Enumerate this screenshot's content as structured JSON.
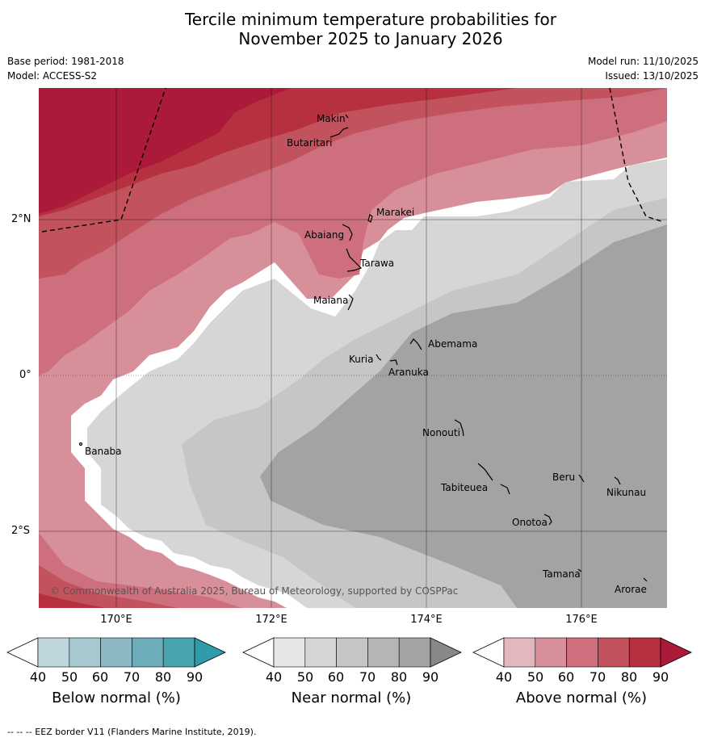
{
  "title": {
    "line1": "Tercile minimum temperature probabilities for",
    "line2": "November 2025 to January 2026"
  },
  "meta": {
    "base_period": "Base period: 1981-2018",
    "model": "Model: ACCESS-S2",
    "model_run": "Model run: 11/10/2025",
    "issued": "Issued: 13/10/2025"
  },
  "map": {
    "lat_labels": [
      "2°N",
      "0°",
      "2°S"
    ],
    "lon_labels": [
      "170°E",
      "172°E",
      "174°E",
      "176°E"
    ],
    "places": [
      {
        "name": "Makin"
      },
      {
        "name": "Butaritari"
      },
      {
        "name": "Marakei"
      },
      {
        "name": "Abaiang"
      },
      {
        "name": "Tarawa"
      },
      {
        "name": "Maiana"
      },
      {
        "name": "Abemama"
      },
      {
        "name": "Kuria"
      },
      {
        "name": "Aranuka"
      },
      {
        "name": "Banaba"
      },
      {
        "name": "Nonouti"
      },
      {
        "name": "Beru"
      },
      {
        "name": "Nikunau"
      },
      {
        "name": "Tabiteuea"
      },
      {
        "name": "Onotoa"
      },
      {
        "name": "Tamana"
      },
      {
        "name": "Arorae"
      }
    ],
    "credit": "© Commonwealth of Australia 2025, Bureau of Meteorology, supported by COSPPac"
  },
  "colorbars": [
    {
      "label": "Below normal (%)",
      "ticks": [
        "40",
        "50",
        "60",
        "70",
        "80",
        "90"
      ],
      "colors": [
        "#bfd6dd",
        "#a6c8cf",
        "#8bb8c3",
        "#6dadb9",
        "#49a3b1",
        "#2f9aaa"
      ]
    },
    {
      "label": "Near normal (%)",
      "ticks": [
        "40",
        "50",
        "60",
        "70",
        "80",
        "90"
      ],
      "colors": [
        "#e6e6e6",
        "#d6d6d6",
        "#c6c6c6",
        "#b5b5b5",
        "#a3a3a3",
        "#888888"
      ]
    },
    {
      "label": "Above normal (%)",
      "ticks": [
        "40",
        "50",
        "60",
        "70",
        "80",
        "90"
      ],
      "colors": [
        "#e3b7be",
        "#d7909a",
        "#cd6f7c",
        "#c3525f",
        "#b7303f",
        "#ab1a38"
      ]
    }
  ],
  "footer": "--  --  -- EEZ border V11 (Flanders Marine Institute, 2019)."
}
